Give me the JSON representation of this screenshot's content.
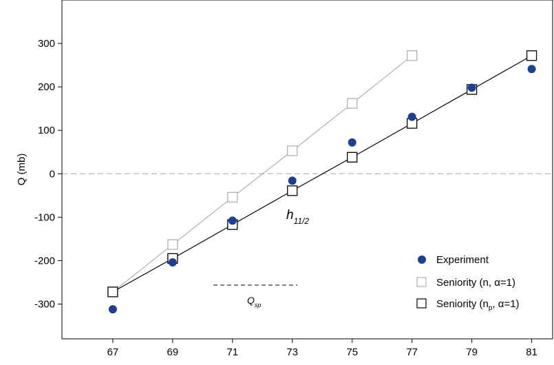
{
  "chart_data": {
    "type": "scatter",
    "ylabel": "Q (mb)",
    "xlabel": "",
    "xlim": [
      65.3,
      81.7
    ],
    "ylim": [
      -380,
      400
    ],
    "x_ticks": [
      67,
      69,
      71,
      73,
      75,
      77,
      79,
      81
    ],
    "y_ticks": [
      -300,
      -200,
      -100,
      0,
      100,
      200,
      300
    ],
    "zero_line": {
      "y": 0,
      "style": "dashed",
      "color": "#bfbfbf"
    },
    "annotations": {
      "orbital": {
        "base": "h",
        "sub": "11/2",
        "x": 73.9,
        "y": -120
      },
      "qsp": {
        "base": "Q",
        "sub": "sp",
        "x": 72.0,
        "y": -310,
        "line": {
          "x_start": 71.0,
          "x_end": 73.6,
          "y": -272
        }
      }
    },
    "legend": {
      "position": "bottom-right"
    },
    "series": [
      {
        "name": "Experiment",
        "marker": "filled-circle",
        "color": "#1f3f8f",
        "line": false,
        "x": [
          67,
          69,
          71,
          73,
          75,
          77,
          79,
          81
        ],
        "y": [
          -312,
          -204,
          -108,
          -16,
          72,
          131,
          198,
          241
        ]
      },
      {
        "name": "Seniority (n, α=1)",
        "marker": "open-square",
        "color": "#b0b0b0",
        "line": true,
        "x": [
          67,
          69,
          71,
          73,
          75,
          77
        ],
        "y": [
          -272,
          -163,
          -54,
          53,
          162,
          272
        ]
      },
      {
        "name_parts": [
          "Seniority (n",
          "p",
          ", α=1)"
        ],
        "marker": "open-square",
        "color": "#000000",
        "line": true,
        "x": [
          67,
          69,
          71,
          73,
          75,
          77,
          79,
          81
        ],
        "y": [
          -272,
          -195,
          -117,
          -39,
          38,
          116,
          194,
          272
        ]
      }
    ]
  }
}
